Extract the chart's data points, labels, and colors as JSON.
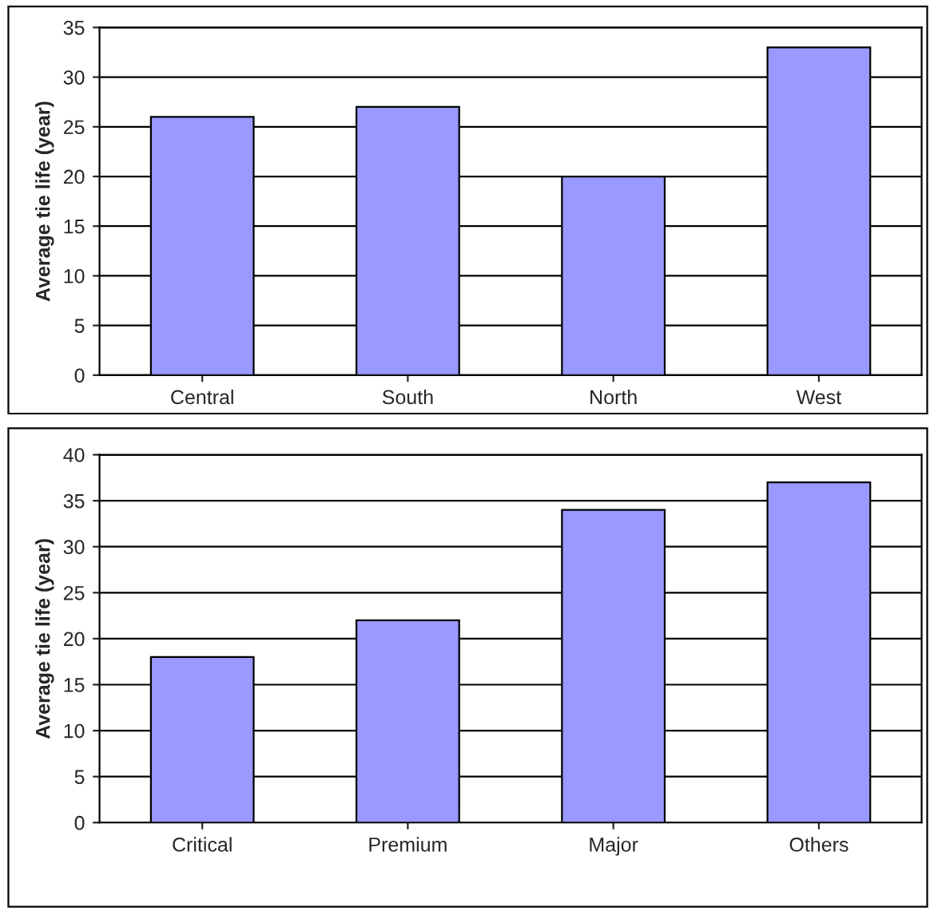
{
  "chart_data": [
    {
      "type": "bar",
      "ylabel": "Average tie life (year)",
      "categories": [
        "Central",
        "South",
        "North",
        "West"
      ],
      "values": [
        26,
        27,
        20,
        33
      ],
      "color": "#9999ff",
      "ylim": [
        0,
        35
      ],
      "yticks": [
        0,
        5,
        10,
        15,
        20,
        25,
        30,
        35
      ],
      "grid": "y",
      "legend": false
    },
    {
      "type": "bar",
      "ylabel": "Average tie life (year)",
      "categories": [
        "Critical",
        "Premium",
        "Major",
        "Others"
      ],
      "values": [
        18,
        22,
        34,
        37
      ],
      "color": "#9999ff",
      "ylim": [
        0,
        40
      ],
      "yticks": [
        0,
        5,
        10,
        15,
        20,
        25,
        30,
        35,
        40
      ],
      "grid": "y",
      "legend": false
    }
  ]
}
